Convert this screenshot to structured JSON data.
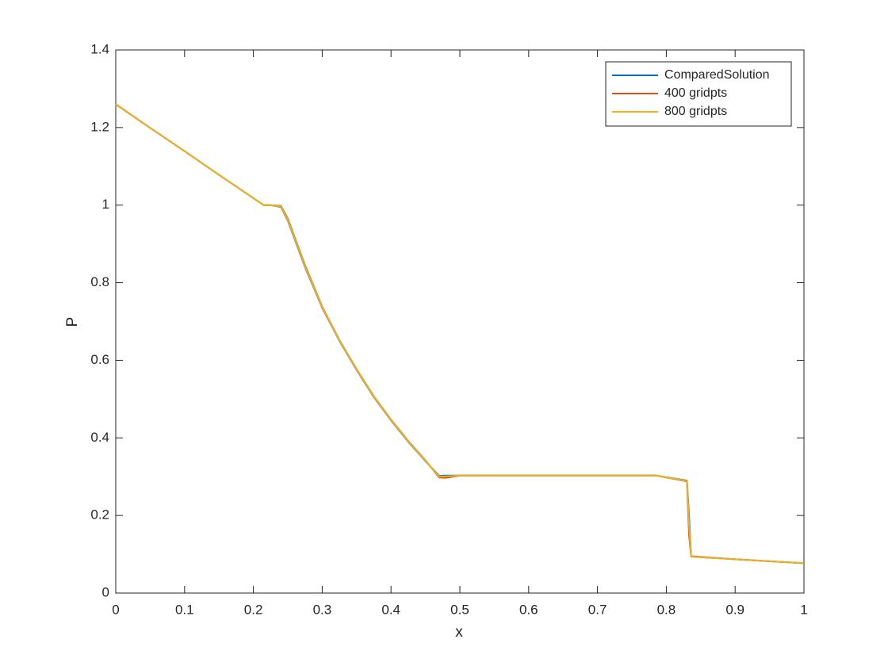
{
  "chart_data": {
    "type": "line",
    "xlabel": "x",
    "ylabel": "P",
    "x": [
      0,
      0.05,
      0.1,
      0.15,
      0.2,
      0.215,
      0.225,
      0.24,
      0.25,
      0.275,
      0.3,
      0.325,
      0.35,
      0.375,
      0.4,
      0.425,
      0.45,
      0.47,
      0.48,
      0.5,
      0.6,
      0.7,
      0.785,
      0.83,
      0.833,
      0.836,
      0.9,
      1
    ],
    "series": [
      {
        "name": "ComparedSolution",
        "color": "#0072bd",
        "values": [
          1.26,
          1.199,
          1.139,
          1.078,
          1.018,
          1.0,
          1.0,
          0.995,
          0.96,
          0.84,
          0.735,
          0.65,
          0.575,
          0.505,
          0.445,
          0.39,
          0.34,
          0.302,
          0.303,
          0.303,
          0.303,
          0.303,
          0.303,
          0.29,
          0.2,
          0.094,
          0.087,
          0.077
        ]
      },
      {
        "name": "400 gridpts",
        "color": "#d95319",
        "values": [
          1.26,
          1.199,
          1.139,
          1.078,
          1.018,
          1.0,
          1.0,
          0.998,
          0.965,
          0.845,
          0.738,
          0.652,
          0.577,
          0.507,
          0.447,
          0.392,
          0.342,
          0.298,
          0.297,
          0.303,
          0.303,
          0.303,
          0.303,
          0.288,
          0.15,
          0.095,
          0.087,
          0.077
        ]
      },
      {
        "name": "800 gridpts",
        "color": "#edb120",
        "values": [
          1.26,
          1.199,
          1.139,
          1.078,
          1.018,
          1.0,
          1.0,
          0.996,
          0.962,
          0.842,
          0.736,
          0.651,
          0.576,
          0.506,
          0.446,
          0.391,
          0.341,
          0.3,
          0.301,
          0.303,
          0.303,
          0.303,
          0.303,
          0.289,
          0.18,
          0.094,
          0.087,
          0.077
        ]
      }
    ],
    "xlim": [
      0,
      1
    ],
    "xticks": [
      0,
      0.1,
      0.2,
      0.3,
      0.4,
      0.5,
      0.6,
      0.7,
      0.8,
      0.9,
      1
    ],
    "ylim": [
      0,
      1.4
    ],
    "yticks": [
      0,
      0.2,
      0.4,
      0.6,
      0.8,
      1,
      1.2,
      1.4
    ],
    "legend": "top-right"
  }
}
